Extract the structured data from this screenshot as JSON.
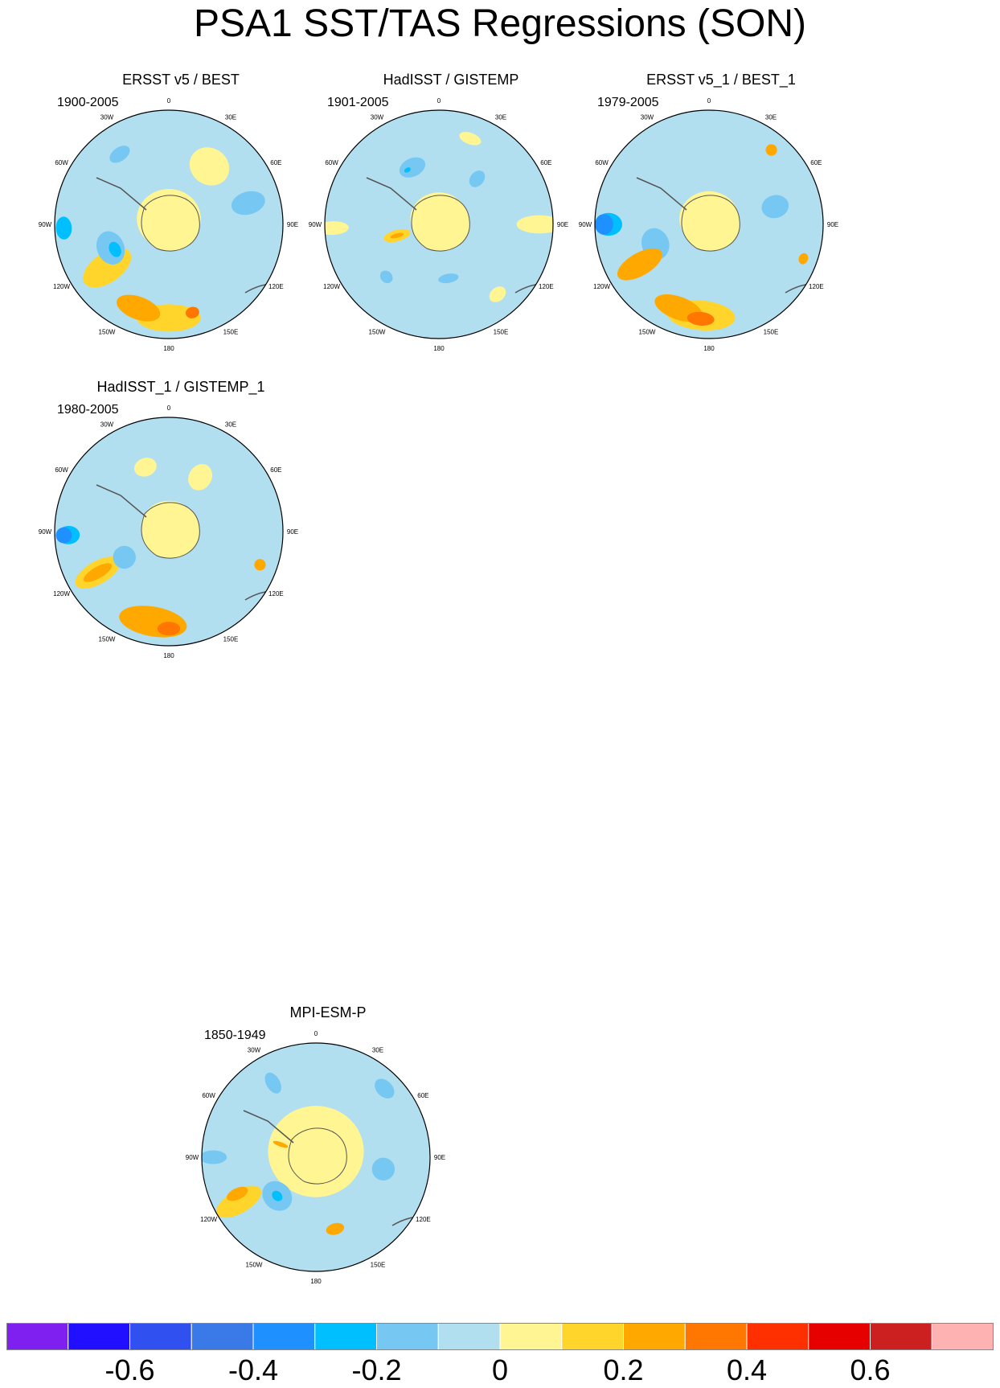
{
  "page": {
    "title": "PSA1 SST/TAS Regressions (SON)"
  },
  "chart_data": {
    "type": "heatmap",
    "projection": "south-polar-stereographic",
    "title": "PSA1 SST/TAS Regressions (SON)",
    "longitude_labels": [
      "0",
      "30E",
      "60E",
      "90E",
      "120E",
      "150E",
      "180",
      "150W",
      "120W",
      "90W",
      "60W",
      "30W"
    ],
    "colorbar": {
      "levels": [
        -0.7,
        -0.6,
        -0.5,
        -0.4,
        -0.3,
        -0.2,
        -0.1,
        0,
        0.1,
        0.2,
        0.3,
        0.4,
        0.5,
        0.6,
        0.7
      ],
      "tick_labels": [
        "-0.6",
        "-0.4",
        "-0.2",
        "0",
        "0.2",
        "0.4",
        "0.6"
      ],
      "tick_values": [
        -0.6,
        -0.4,
        -0.2,
        0,
        0.2,
        0.4,
        0.6
      ],
      "colors": [
        "#8020f0",
        "#2010ff",
        "#3050f0",
        "#3a7ae8",
        "#1e90ff",
        "#00bfff",
        "#76c8f2",
        "#b2dff0",
        "#fff593",
        "#ffd52c",
        "#ffa800",
        "#ff7600",
        "#ff3000",
        "#e60000",
        "#cc2020",
        "#ffb2b2"
      ]
    },
    "panels": [
      {
        "title": "ERSST v5 / BEST",
        "years": "1900-2005",
        "features": [
          {
            "kind": "blob",
            "lon": 180,
            "r": 0.82,
            "sx": 0.28,
            "sy": 0.12,
            "level": 0.15
          },
          {
            "kind": "blob",
            "lon": 200,
            "r": 0.78,
            "sx": 0.2,
            "sy": 0.1,
            "level": 0.25
          },
          {
            "kind": "blob",
            "lon": 165,
            "r": 0.8,
            "sx": 0.06,
            "sy": 0.05,
            "level": 0.35
          },
          {
            "kind": "blob",
            "lon": 235,
            "r": 0.66,
            "sx": 0.13,
            "sy": 0.24,
            "level": 0.15
          },
          {
            "kind": "blob",
            "lon": 248,
            "r": 0.55,
            "sx": 0.15,
            "sy": 0.12,
            "level": -0.15
          },
          {
            "kind": "blob",
            "lon": 245,
            "r": 0.52,
            "sx": 0.07,
            "sy": 0.05,
            "level": -0.25
          },
          {
            "kind": "blob",
            "lon": 268,
            "r": 0.92,
            "sx": 0.1,
            "sy": 0.07,
            "level": -0.25
          },
          {
            "kind": "blob",
            "lon": 75,
            "r": 0.72,
            "sx": 0.1,
            "sy": 0.15,
            "level": -0.15
          },
          {
            "kind": "blob",
            "lon": 325,
            "r": 0.75,
            "sx": 0.1,
            "sy": 0.06,
            "level": -0.15
          },
          {
            "kind": "blob",
            "lon": 35,
            "r": 0.62,
            "sx": 0.18,
            "sy": 0.16,
            "level": 0.05
          },
          {
            "kind": "blob",
            "lon": 0,
            "r": 0.05,
            "sx": 0.28,
            "sy": 0.26,
            "level": 0.05
          }
        ]
      },
      {
        "title": "HadISST / GISTEMP",
        "years": "1901-2005",
        "features": [
          {
            "kind": "blob",
            "lon": 0,
            "r": 0.05,
            "sx": 0.25,
            "sy": 0.23,
            "level": 0.05
          },
          {
            "kind": "blob",
            "lon": 255,
            "r": 0.38,
            "sx": 0.05,
            "sy": 0.12,
            "level": 0.15
          },
          {
            "kind": "blob",
            "lon": 255,
            "r": 0.38,
            "sx": 0.02,
            "sy": 0.06,
            "level": 0.25
          },
          {
            "kind": "blob",
            "lon": 90,
            "r": 0.88,
            "sx": 0.08,
            "sy": 0.2,
            "level": 0.05
          },
          {
            "kind": "blob",
            "lon": 268,
            "r": 0.93,
            "sx": 0.06,
            "sy": 0.14,
            "level": 0.05
          },
          {
            "kind": "blob",
            "lon": 20,
            "r": 0.8,
            "sx": 0.1,
            "sy": 0.05,
            "level": 0.05
          },
          {
            "kind": "blob",
            "lon": 140,
            "r": 0.8,
            "sx": 0.08,
            "sy": 0.06,
            "level": 0.05
          },
          {
            "kind": "blob",
            "lon": 170,
            "r": 0.48,
            "sx": 0.09,
            "sy": 0.04,
            "level": -0.15
          },
          {
            "kind": "blob",
            "lon": 335,
            "r": 0.55,
            "sx": 0.12,
            "sy": 0.08,
            "level": -0.15
          },
          {
            "kind": "blob",
            "lon": 330,
            "r": 0.55,
            "sx": 0.03,
            "sy": 0.02,
            "level": -0.25
          },
          {
            "kind": "blob",
            "lon": 40,
            "r": 0.52,
            "sx": 0.06,
            "sy": 0.08,
            "level": -0.15
          },
          {
            "kind": "blob",
            "lon": 225,
            "r": 0.65,
            "sx": 0.06,
            "sy": 0.05,
            "level": -0.15
          }
        ]
      },
      {
        "title": "ERSST v5_1 / BEST_1",
        "years": "1979-2005",
        "features": [
          {
            "kind": "blob",
            "lon": 185,
            "r": 0.8,
            "sx": 0.3,
            "sy": 0.13,
            "level": 0.15
          },
          {
            "kind": "blob",
            "lon": 200,
            "r": 0.78,
            "sx": 0.22,
            "sy": 0.1,
            "level": 0.25
          },
          {
            "kind": "blob",
            "lon": 185,
            "r": 0.83,
            "sx": 0.12,
            "sy": 0.06,
            "level": 0.35
          },
          {
            "kind": "blob",
            "lon": 240,
            "r": 0.7,
            "sx": 0.1,
            "sy": 0.22,
            "level": 0.25
          },
          {
            "kind": "blob",
            "lon": 250,
            "r": 0.5,
            "sx": 0.14,
            "sy": 0.12,
            "level": -0.15
          },
          {
            "kind": "blob",
            "lon": 270,
            "r": 0.92,
            "sx": 0.09,
            "sy": 0.08,
            "level": -0.35
          },
          {
            "kind": "blob",
            "lon": 270,
            "r": 0.88,
            "sx": 0.1,
            "sy": 0.12,
            "level": -0.25
          },
          {
            "kind": "blob",
            "lon": 75,
            "r": 0.6,
            "sx": 0.1,
            "sy": 0.12,
            "level": -0.15
          },
          {
            "kind": "blob",
            "lon": 40,
            "r": 0.85,
            "sx": 0.05,
            "sy": 0.05,
            "level": 0.25
          },
          {
            "kind": "blob",
            "lon": 110,
            "r": 0.88,
            "sx": 0.05,
            "sy": 0.04,
            "level": 0.25
          },
          {
            "kind": "blob",
            "lon": 0,
            "r": 0.05,
            "sx": 0.26,
            "sy": 0.24,
            "level": 0.05
          }
        ]
      },
      {
        "title": "HadISST_1 / GISTEMP_1",
        "years": "1980-2005",
        "features": [
          {
            "kind": "blob",
            "lon": 190,
            "r": 0.8,
            "sx": 0.3,
            "sy": 0.13,
            "level": 0.25
          },
          {
            "kind": "blob",
            "lon": 180,
            "r": 0.85,
            "sx": 0.1,
            "sy": 0.06,
            "level": 0.35
          },
          {
            "kind": "blob",
            "lon": 240,
            "r": 0.72,
            "sx": 0.1,
            "sy": 0.22,
            "level": 0.15
          },
          {
            "kind": "blob",
            "lon": 240,
            "r": 0.72,
            "sx": 0.05,
            "sy": 0.14,
            "level": 0.25
          },
          {
            "kind": "blob",
            "lon": 268,
            "r": 0.92,
            "sx": 0.07,
            "sy": 0.07,
            "level": -0.35
          },
          {
            "kind": "blob",
            "lon": 268,
            "r": 0.88,
            "sx": 0.08,
            "sy": 0.1,
            "level": -0.25
          },
          {
            "kind": "blob",
            "lon": 240,
            "r": 0.45,
            "sx": 0.1,
            "sy": 0.1,
            "level": -0.15
          },
          {
            "kind": "blob",
            "lon": 30,
            "r": 0.55,
            "sx": 0.1,
            "sy": 0.12,
            "level": 0.05
          },
          {
            "kind": "blob",
            "lon": 110,
            "r": 0.85,
            "sx": 0.05,
            "sy": 0.05,
            "level": 0.25
          },
          {
            "kind": "blob",
            "lon": 340,
            "r": 0.6,
            "sx": 0.1,
            "sy": 0.08,
            "level": 0.05
          },
          {
            "kind": "blob",
            "lon": 0,
            "r": 0.05,
            "sx": 0.24,
            "sy": 0.22,
            "level": 0.05
          }
        ]
      },
      {
        "title": "MPI-ESM-P",
        "years": "1850-1949",
        "features": [
          {
            "kind": "blob",
            "lon": 0,
            "r": 0.05,
            "sx": 0.42,
            "sy": 0.4,
            "level": 0.05
          },
          {
            "kind": "blob",
            "lon": 240,
            "r": 0.78,
            "sx": 0.1,
            "sy": 0.22,
            "level": 0.15
          },
          {
            "kind": "blob",
            "lon": 245,
            "r": 0.76,
            "sx": 0.05,
            "sy": 0.1,
            "level": 0.25
          },
          {
            "kind": "blob",
            "lon": 225,
            "r": 0.48,
            "sx": 0.14,
            "sy": 0.12,
            "level": -0.15
          },
          {
            "kind": "blob",
            "lon": 225,
            "r": 0.48,
            "sx": 0.05,
            "sy": 0.04,
            "level": -0.25
          },
          {
            "kind": "blob",
            "lon": 270,
            "r": 0.9,
            "sx": 0.06,
            "sy": 0.12,
            "level": -0.15
          },
          {
            "kind": "blob",
            "lon": 165,
            "r": 0.65,
            "sx": 0.08,
            "sy": 0.05,
            "level": 0.25
          },
          {
            "kind": "blob",
            "lon": 290,
            "r": 0.33,
            "sx": 0.02,
            "sy": 0.07,
            "level": 0.25
          },
          {
            "kind": "blob",
            "lon": 100,
            "r": 0.6,
            "sx": 0.1,
            "sy": 0.1,
            "level": -0.15
          },
          {
            "kind": "blob",
            "lon": 45,
            "r": 0.85,
            "sx": 0.1,
            "sy": 0.07,
            "level": -0.15
          },
          {
            "kind": "blob",
            "lon": 330,
            "r": 0.75,
            "sx": 0.06,
            "sy": 0.1,
            "level": -0.15
          }
        ]
      }
    ]
  }
}
